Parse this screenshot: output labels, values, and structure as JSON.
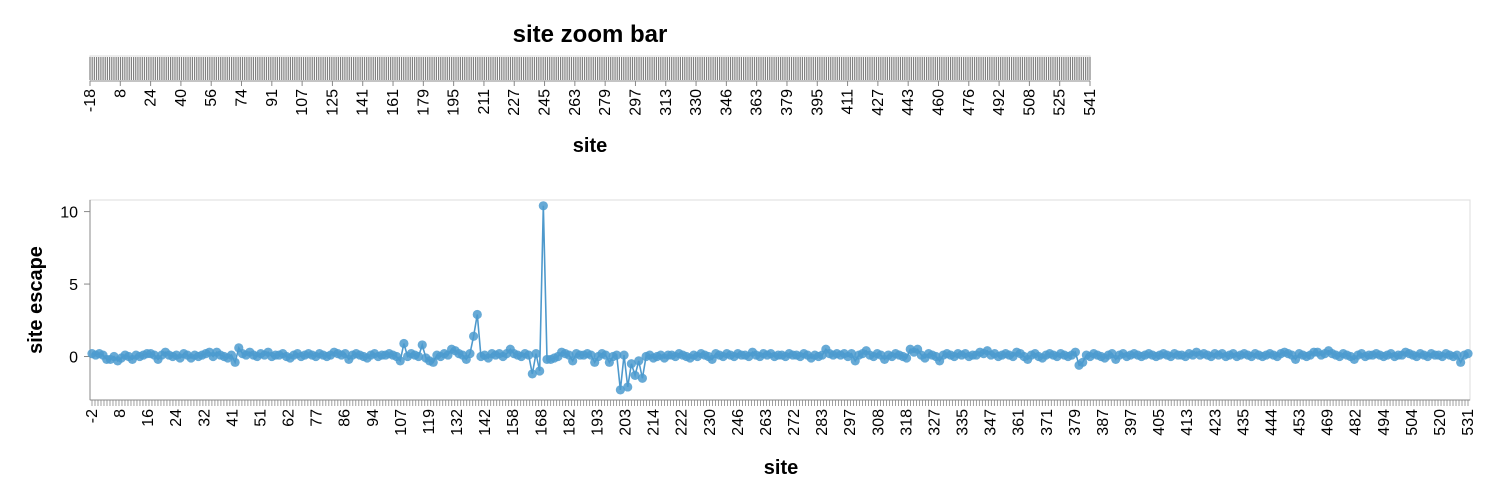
{
  "colors": {
    "mark": "#4c9bcf",
    "line": "#3b8ec7",
    "zoom_fill": "#808080",
    "axis": "#888888",
    "frame": "#dddddd"
  },
  "zoom_bar": {
    "title": "site zoom bar",
    "xlabel": "site",
    "tick_labels": [
      "-18",
      "8",
      "24",
      "40",
      "56",
      "74",
      "91",
      "107",
      "125",
      "141",
      "161",
      "179",
      "195",
      "211",
      "227",
      "245",
      "263",
      "279",
      "297",
      "313",
      "330",
      "346",
      "363",
      "379",
      "395",
      "411",
      "427",
      "443",
      "460",
      "476",
      "492",
      "508",
      "525",
      "541"
    ]
  },
  "chart_data": {
    "type": "line",
    "title": "",
    "xlabel": "site",
    "ylabel": "site escape",
    "ylim": [
      -3,
      10.8
    ],
    "y_ticks": [
      "10",
      "5",
      "0"
    ],
    "x_tick_labels": [
      "-2",
      "8",
      "16",
      "24",
      "32",
      "41",
      "51",
      "62",
      "77",
      "86",
      "94",
      "107",
      "119",
      "132",
      "142",
      "158",
      "168",
      "182",
      "193",
      "203",
      "214",
      "222",
      "230",
      "246",
      "263",
      "272",
      "283",
      "297",
      "308",
      "318",
      "327",
      "335",
      "347",
      "361",
      "371",
      "379",
      "387",
      "397",
      "405",
      "413",
      "423",
      "435",
      "444",
      "453",
      "469",
      "482",
      "494",
      "504",
      "520",
      "531"
    ],
    "site_count": 460,
    "series": [
      {
        "values": [
          0.2,
          0.1,
          0.2,
          0.1,
          -0.2,
          -0.2,
          0.0,
          -0.3,
          -0.1,
          0.1,
          0.0,
          -0.2,
          0.1,
          0.0,
          0.1,
          0.2,
          0.2,
          0.1,
          -0.2,
          0.1,
          0.3,
          0.1,
          0.0,
          0.1,
          -0.1,
          0.2,
          0.1,
          -0.1,
          0.1,
          0.0,
          0.1,
          0.2,
          0.3,
          0.0,
          0.3,
          0.1,
          0.0,
          -0.1,
          0.1,
          -0.4,
          0.6,
          0.2,
          0.1,
          0.3,
          0.1,
          0.0,
          0.2,
          0.1,
          0.3,
          0.0,
          0.1,
          0.1,
          0.2,
          0.0,
          -0.1,
          0.1,
          0.2,
          0.0,
          0.1,
          0.2,
          0.1,
          0.0,
          0.2,
          0.1,
          0.0,
          0.1,
          0.3,
          0.2,
          0.1,
          0.2,
          -0.2,
          0.1,
          0.2,
          0.1,
          0.0,
          -0.1,
          0.1,
          0.2,
          0.0,
          0.1,
          0.1,
          0.2,
          0.1,
          0.0,
          -0.3,
          0.9,
          0.0,
          0.2,
          0.1,
          0.0,
          0.8,
          -0.1,
          -0.3,
          -0.4,
          0.1,
          0.0,
          0.2,
          0.1,
          0.5,
          0.4,
          0.2,
          0.1,
          -0.2,
          0.2,
          1.4,
          2.9,
          0.0,
          0.1,
          -0.1,
          0.2,
          0.1,
          0.2,
          0.0,
          0.2,
          0.5,
          0.2,
          0.1,
          0.0,
          0.2,
          0.1,
          -1.2,
          0.2,
          -1.0,
          10.4,
          -0.2,
          -0.2,
          -0.1,
          0.0,
          0.3,
          0.2,
          0.1,
          -0.3,
          0.2,
          0.1,
          0.1,
          0.2,
          0.1,
          -0.4,
          0.0,
          0.2,
          0.1,
          -0.4,
          0.0,
          0.1,
          -2.3,
          0.1,
          -2.1,
          -0.5,
          -1.3,
          -0.3,
          -1.5,
          0.0,
          0.1,
          -0.1,
          0.0,
          0.1,
          -0.1,
          0.1,
          0.1,
          0.0,
          0.2,
          0.1,
          0.0,
          -0.1,
          0.1,
          0.0,
          0.2,
          0.1,
          0.0,
          -0.2,
          0.2,
          0.1,
          0.0,
          0.2,
          0.1,
          0.0,
          0.2,
          0.1,
          0.1,
          0.0,
          0.3,
          0.1,
          0.0,
          0.2,
          0.1,
          0.2,
          0.0,
          0.1,
          0.1,
          0.0,
          0.2,
          0.1,
          0.1,
          0.0,
          0.2,
          0.1,
          -0.1,
          0.1,
          0.0,
          0.1,
          0.5,
          0.2,
          0.1,
          0.2,
          0.1,
          0.2,
          0.0,
          0.2,
          -0.3,
          0.1,
          0.2,
          0.4,
          0.1,
          0.0,
          0.2,
          0.1,
          -0.2,
          0.1,
          0.0,
          0.2,
          0.1,
          0.0,
          -0.1,
          0.5,
          0.3,
          0.5,
          0.1,
          -0.1,
          0.2,
          0.1,
          0.0,
          -0.3,
          0.1,
          0.2,
          0.1,
          0.0,
          0.2,
          0.1,
          0.2,
          0.0,
          0.1,
          0.1,
          0.3,
          0.2,
          0.4,
          0.1,
          0.2,
          0.0,
          0.1,
          0.2,
          0.1,
          0.0,
          0.3,
          0.2,
          0.0,
          -0.2,
          0.1,
          0.2,
          0.0,
          -0.1,
          0.1,
          0.2,
          0.1,
          0.0,
          0.2,
          0.1,
          0.0,
          0.1,
          0.3,
          -0.6,
          -0.4,
          0.1,
          0.0,
          0.2,
          0.1,
          0.0,
          -0.1,
          0.1,
          0.2,
          -0.2,
          0.1,
          0.2,
          0.0,
          0.1,
          0.2,
          0.1,
          0.0,
          0.1,
          0.2,
          0.1,
          0.0,
          0.1,
          0.2,
          0.1,
          0.0,
          0.2,
          0.1,
          0.1,
          0.0,
          0.2,
          0.1,
          0.3,
          0.1,
          0.2,
          0.1,
          0.0,
          0.2,
          0.1,
          0.2,
          0.0,
          0.1,
          0.2,
          0.0,
          0.1,
          0.2,
          0.1,
          0.0,
          0.2,
          0.1,
          0.0,
          0.1,
          0.2,
          0.1,
          0.0,
          0.2,
          0.3,
          0.2,
          0.1,
          -0.2,
          0.2,
          0.1,
          0.0,
          0.1,
          0.3,
          0.3,
          0.1,
          0.2,
          0.4,
          0.2,
          0.1,
          0.0,
          0.2,
          0.1,
          0.0,
          -0.2,
          0.1,
          0.2,
          0.0,
          0.1,
          0.1,
          0.2,
          0.1,
          0.0,
          0.1,
          0.2,
          0.0,
          0.1,
          0.1,
          0.3,
          0.2,
          0.1,
          0.0,
          0.2,
          0.1,
          0.0,
          0.2,
          0.1,
          0.1,
          0.0,
          0.2,
          0.1,
          0.0,
          0.1,
          -0.4,
          0.1,
          0.2
        ]
      }
    ]
  }
}
